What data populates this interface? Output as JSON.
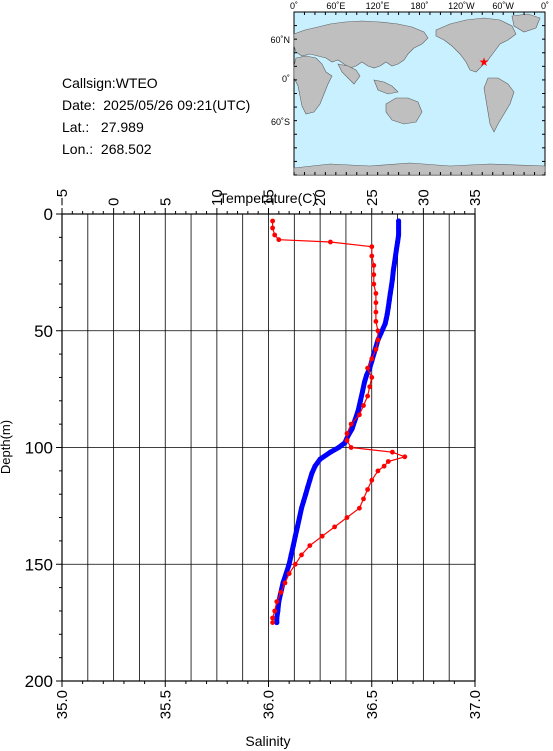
{
  "info": {
    "callsign_label": "Callsign:",
    "callsign": "WTEO",
    "date_label": "Date:",
    "date": "2025/05/26 09:21(UTC)",
    "lat_label": "Lat.:",
    "lat": "27.989",
    "lon_label": "Lon.:",
    "lon": "268.502"
  },
  "map": {
    "top_ticks": [
      "0˚",
      "60˚E",
      "120˚E",
      "180˚",
      "120˚W",
      "60˚W",
      "0˚"
    ],
    "left_ticks": [
      "60˚N",
      "0˚",
      "60˚S"
    ],
    "ocean_color": "#c8f0ff",
    "land_color": "#bfbfbf",
    "marker_color": "#ff0000"
  },
  "chart_data": {
    "type": "line",
    "top_axis_label": "Temperature(C)",
    "left_axis_label": "Depth(m)",
    "bottom_axis_label": "Salinity",
    "temperature_ticks": [
      "−5",
      "0",
      "5",
      "10",
      "15",
      "20",
      "25",
      "30",
      "35"
    ],
    "depth_ticks": [
      "0",
      "50",
      "100",
      "150",
      "200"
    ],
    "salinity_ticks": [
      "35.0",
      "35.5",
      "36.0",
      "36.5",
      "37.0"
    ],
    "temperature_range": [
      -5,
      35
    ],
    "depth_range": [
      0,
      200
    ],
    "salinity_range": [
      35.0,
      37.0
    ],
    "grid": true,
    "series": [
      {
        "name": "",
        "color": "#0000ff",
        "axis": "temperature",
        "points": [
          [
            27.6,
            3
          ],
          [
            27.6,
            6
          ],
          [
            27.6,
            9
          ],
          [
            27.5,
            12
          ],
          [
            27.4,
            15
          ],
          [
            27.3,
            18
          ],
          [
            27.2,
            21
          ],
          [
            27.1,
            24
          ],
          [
            27.0,
            28
          ],
          [
            26.9,
            31
          ],
          [
            26.8,
            34
          ],
          [
            26.7,
            37
          ],
          [
            26.6,
            40
          ],
          [
            26.5,
            43
          ],
          [
            26.4,
            45
          ],
          [
            26.3,
            47
          ],
          [
            26.1,
            49
          ],
          [
            25.9,
            51
          ],
          [
            25.6,
            54
          ],
          [
            25.4,
            57
          ],
          [
            25.2,
            60
          ],
          [
            25.0,
            63
          ],
          [
            24.8,
            66
          ],
          [
            24.5,
            69
          ],
          [
            24.3,
            72
          ],
          [
            24.1,
            76
          ],
          [
            23.9,
            80
          ],
          [
            23.7,
            84
          ],
          [
            23.4,
            88
          ],
          [
            23.1,
            92
          ],
          [
            22.7,
            95
          ],
          [
            22.4,
            98
          ],
          [
            21.8,
            100
          ],
          [
            21.0,
            102
          ],
          [
            20.0,
            105
          ],
          [
            19.5,
            108
          ],
          [
            19.2,
            111
          ],
          [
            19.0,
            114
          ],
          [
            18.8,
            117
          ],
          [
            18.6,
            120
          ],
          [
            18.4,
            123
          ],
          [
            18.2,
            126
          ],
          [
            18.0,
            130
          ],
          [
            17.8,
            134
          ],
          [
            17.6,
            138
          ],
          [
            17.4,
            142
          ],
          [
            17.2,
            146
          ],
          [
            17.0,
            150
          ],
          [
            16.7,
            154
          ],
          [
            16.4,
            158
          ],
          [
            16.2,
            162
          ],
          [
            16.0,
            166
          ],
          [
            15.9,
            170
          ],
          [
            15.8,
            173
          ],
          [
            15.8,
            175
          ]
        ]
      },
      {
        "name": "",
        "color": "#ff0000",
        "axis": "salinity",
        "points": [
          [
            36.02,
            3
          ],
          [
            36.02,
            6
          ],
          [
            36.03,
            9
          ],
          [
            36.05,
            11
          ],
          [
            36.3,
            12
          ],
          [
            36.5,
            14
          ],
          [
            36.5,
            18
          ],
          [
            36.51,
            22
          ],
          [
            36.51,
            26
          ],
          [
            36.51,
            30
          ],
          [
            36.52,
            34
          ],
          [
            36.52,
            38
          ],
          [
            36.52,
            42
          ],
          [
            36.52,
            46
          ],
          [
            36.53,
            50
          ],
          [
            36.53,
            54
          ],
          [
            36.52,
            58
          ],
          [
            36.5,
            62
          ],
          [
            36.48,
            66
          ],
          [
            36.5,
            70
          ],
          [
            36.49,
            74
          ],
          [
            36.48,
            78
          ],
          [
            36.46,
            82
          ],
          [
            36.44,
            86
          ],
          [
            36.4,
            90
          ],
          [
            36.38,
            94
          ],
          [
            36.38,
            97
          ],
          [
            36.4,
            100
          ],
          [
            36.6,
            102
          ],
          [
            36.66,
            104
          ],
          [
            36.58,
            106
          ],
          [
            36.56,
            108
          ],
          [
            36.53,
            110
          ],
          [
            36.5,
            114
          ],
          [
            36.48,
            118
          ],
          [
            36.46,
            122
          ],
          [
            36.44,
            126
          ],
          [
            36.38,
            130
          ],
          [
            36.32,
            134
          ],
          [
            36.26,
            138
          ],
          [
            36.2,
            142
          ],
          [
            36.16,
            146
          ],
          [
            36.13,
            150
          ],
          [
            36.1,
            154
          ],
          [
            36.08,
            158
          ],
          [
            36.06,
            162
          ],
          [
            36.04,
            166
          ],
          [
            36.03,
            170
          ],
          [
            36.02,
            173
          ],
          [
            36.02,
            175
          ]
        ]
      }
    ]
  }
}
